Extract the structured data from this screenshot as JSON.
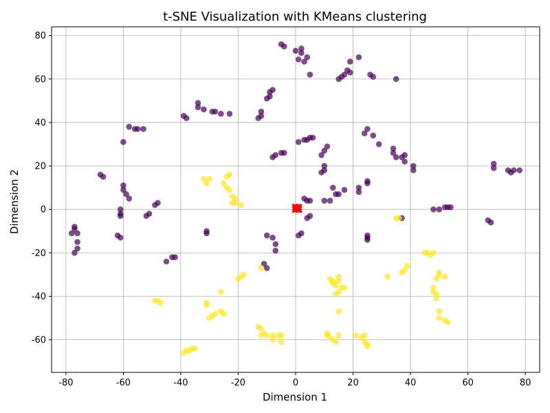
{
  "chart_data": {
    "type": "scatter",
    "title": "t-SNE Visualization with KMeans clustering",
    "xlabel": "Dimension 1",
    "ylabel": "Dimension 2",
    "xlim": [
      -85,
      85
    ],
    "ylim": [
      -75,
      84
    ],
    "xticks": [
      -80,
      -60,
      -40,
      -20,
      0,
      20,
      40,
      60,
      80
    ],
    "yticks": [
      -60,
      -40,
      -20,
      0,
      20,
      40,
      60,
      80
    ],
    "grid": true,
    "colors": {
      "cluster_0": "#440154",
      "cluster_1": "#fde725",
      "centroid": "#ff0000"
    },
    "series": [
      {
        "color": "#440154",
        "points": [
          [
            -5,
            76
          ],
          [
            -4,
            75
          ],
          [
            0,
            73
          ],
          [
            2,
            72
          ],
          [
            2,
            74
          ],
          [
            4,
            70
          ],
          [
            1,
            69
          ],
          [
            3,
            68
          ],
          [
            5,
            62
          ],
          [
            15,
            60
          ],
          [
            16,
            61
          ],
          [
            17,
            62
          ],
          [
            18,
            64
          ],
          [
            19,
            63
          ],
          [
            19,
            68
          ],
          [
            22,
            70
          ],
          [
            26,
            62
          ],
          [
            27,
            61
          ],
          [
            35,
            60
          ],
          [
            -34,
            49
          ],
          [
            -34,
            47
          ],
          [
            -32,
            46
          ],
          [
            -29,
            45
          ],
          [
            -28,
            45
          ],
          [
            -26,
            44
          ],
          [
            -23,
            44
          ],
          [
            -13,
            42
          ],
          [
            -12,
            43
          ],
          [
            -12,
            45
          ],
          [
            -10,
            51
          ],
          [
            -9,
            52
          ],
          [
            -9,
            54
          ],
          [
            -8,
            55
          ],
          [
            -39,
            43
          ],
          [
            -38,
            42
          ],
          [
            -58,
            38
          ],
          [
            -56,
            37
          ],
          [
            -55,
            37
          ],
          [
            -53,
            37
          ],
          [
            -60,
            31
          ],
          [
            -68,
            16
          ],
          [
            -67,
            15
          ],
          [
            -60,
            11
          ],
          [
            -60,
            9
          ],
          [
            -59,
            7
          ],
          [
            -58,
            5
          ],
          [
            -61,
            0
          ],
          [
            -61,
            -2
          ],
          [
            -61,
            -3
          ],
          [
            -62,
            -12
          ],
          [
            -61,
            -13
          ],
          [
            -77,
            -8
          ],
          [
            -77,
            -9
          ],
          [
            -76,
            -11
          ],
          [
            -78,
            -11
          ],
          [
            -76,
            -15
          ],
          [
            -76,
            -18
          ],
          [
            -77,
            -20
          ],
          [
            -52,
            -3
          ],
          [
            -51,
            -2
          ],
          [
            -49,
            2
          ],
          [
            -48,
            3
          ],
          [
            -31,
            -10
          ],
          [
            -31,
            -11
          ],
          [
            -45,
            -24
          ],
          [
            -43,
            -22
          ],
          [
            -42,
            -22
          ],
          [
            -11,
            -25
          ],
          [
            -10,
            -27
          ],
          [
            -10,
            -12
          ],
          [
            -8,
            -13
          ],
          [
            -7,
            -16
          ],
          [
            -7,
            -19
          ],
          [
            1,
            31
          ],
          [
            3,
            32
          ],
          [
            4,
            32
          ],
          [
            5,
            33
          ],
          [
            6,
            33
          ],
          [
            -8,
            24
          ],
          [
            -7,
            25
          ],
          [
            -5,
            26
          ],
          [
            -4,
            26
          ],
          [
            9,
            17
          ],
          [
            10,
            18
          ],
          [
            10,
            20
          ],
          [
            9,
            25
          ],
          [
            10,
            27
          ],
          [
            11,
            29
          ],
          [
            24,
            35
          ],
          [
            25,
            37
          ],
          [
            27,
            34
          ],
          [
            29,
            30
          ],
          [
            34,
            28
          ],
          [
            35,
            24
          ],
          [
            34,
            26
          ],
          [
            37,
            24
          ],
          [
            38,
            25
          ],
          [
            38,
            22
          ],
          [
            41,
            20
          ],
          [
            41,
            18
          ],
          [
            22,
            8
          ],
          [
            22,
            10
          ],
          [
            25,
            12
          ],
          [
            25,
            13
          ],
          [
            13,
            10
          ],
          [
            14,
            7
          ],
          [
            15,
            7
          ],
          [
            17,
            9
          ],
          [
            12,
            4
          ],
          [
            3,
            5
          ],
          [
            4,
            4
          ],
          [
            5,
            4
          ],
          [
            10,
            4
          ],
          [
            4,
            -4
          ],
          [
            5,
            -3
          ],
          [
            1,
            -12
          ],
          [
            2,
            -11
          ],
          [
            25,
            -12
          ],
          [
            25,
            -13
          ],
          [
            25,
            -14
          ],
          [
            37,
            -4
          ],
          [
            48,
            0
          ],
          [
            50,
            0
          ],
          [
            52,
            1
          ],
          [
            53,
            1
          ],
          [
            54,
            1
          ],
          [
            67,
            -5
          ],
          [
            68,
            -6
          ],
          [
            69,
            21
          ],
          [
            69,
            19
          ],
          [
            74,
            18
          ],
          [
            75,
            17
          ],
          [
            76,
            18
          ],
          [
            78,
            18
          ]
        ]
      },
      {
        "color": "#fde725",
        "points": [
          [
            -32,
            14
          ],
          [
            -31,
            12
          ],
          [
            -30,
            14
          ],
          [
            -24,
            15
          ],
          [
            -23,
            16
          ],
          [
            -25,
            12
          ],
          [
            -24,
            10
          ],
          [
            -23,
            9
          ],
          [
            -22,
            6
          ],
          [
            -21,
            5
          ],
          [
            -21,
            3
          ],
          [
            -22,
            3
          ],
          [
            -19,
            2
          ],
          [
            -20,
            -32
          ],
          [
            -19,
            -31
          ],
          [
            -18,
            -30
          ],
          [
            -12,
            -27
          ],
          [
            -49,
            -42
          ],
          [
            -48,
            -42
          ],
          [
            -47,
            -43
          ],
          [
            -31,
            -43
          ],
          [
            -31,
            -44
          ],
          [
            -30,
            -50
          ],
          [
            -29,
            -49
          ],
          [
            -28,
            -48
          ],
          [
            -26,
            -38
          ],
          [
            -26,
            -47
          ],
          [
            -25,
            -48
          ],
          [
            -39,
            -66
          ],
          [
            -38,
            -65
          ],
          [
            -37,
            -65
          ],
          [
            -36,
            -64
          ],
          [
            -35,
            -64
          ],
          [
            -13,
            -54
          ],
          [
            -12,
            -55
          ],
          [
            -11,
            -57
          ],
          [
            -12,
            -58
          ],
          [
            -10,
            -58
          ],
          [
            -8,
            -60
          ],
          [
            -6,
            -58
          ],
          [
            -5,
            -58
          ],
          [
            -5,
            -61
          ],
          [
            -8,
            -58
          ],
          [
            12,
            -32
          ],
          [
            13,
            -33
          ],
          [
            13,
            -34
          ],
          [
            14,
            -35
          ],
          [
            15,
            -31
          ],
          [
            15,
            -33
          ],
          [
            15,
            -38
          ],
          [
            14,
            -39
          ],
          [
            16,
            -36
          ],
          [
            17,
            -36
          ],
          [
            15,
            -47
          ],
          [
            11,
            -57
          ],
          [
            12,
            -59
          ],
          [
            13,
            -60
          ],
          [
            15,
            -58
          ],
          [
            14,
            -61
          ],
          [
            11,
            -58
          ],
          [
            21,
            -58
          ],
          [
            23,
            -59
          ],
          [
            24,
            -58
          ],
          [
            24,
            -61
          ],
          [
            25,
            -62
          ],
          [
            25,
            -63
          ],
          [
            32,
            -31
          ],
          [
            37,
            -29
          ],
          [
            38,
            -28
          ],
          [
            39,
            -26
          ],
          [
            35,
            -4
          ],
          [
            36,
            -4
          ],
          [
            45,
            -20
          ],
          [
            46,
            -20
          ],
          [
            47,
            -21
          ],
          [
            48,
            -20
          ],
          [
            48,
            -36
          ],
          [
            48,
            -38
          ],
          [
            49,
            -39
          ],
          [
            49,
            -41
          ],
          [
            49,
            -32
          ],
          [
            50,
            -30
          ],
          [
            50,
            -29
          ],
          [
            52,
            -31
          ],
          [
            50,
            -47
          ],
          [
            50,
            -50
          ],
          [
            52,
            -51
          ],
          [
            53,
            -52
          ]
        ]
      }
    ],
    "centroids": [
      [
        0,
        1
      ],
      [
        1,
        1
      ],
      [
        0,
        0
      ],
      [
        1,
        0
      ]
    ]
  }
}
